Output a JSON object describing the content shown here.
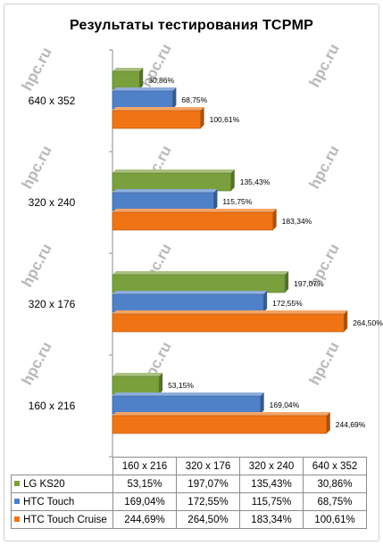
{
  "chart_data": {
    "type": "bar",
    "orientation": "horizontal",
    "title": "Результаты тестирования  TCPMP",
    "categories": [
      "160 x 216",
      "320 x 176",
      "320 x 240",
      "640 x 352"
    ],
    "series": [
      {
        "name": "LG KS20",
        "values": [
          53.15,
          197.07,
          135.43,
          30.86
        ],
        "labels": [
          "53,15%",
          "197,07%",
          "135,43%",
          "30,86%"
        ],
        "color": "#79a03c"
      },
      {
        "name": "HTC Touch",
        "values": [
          169.04,
          172.55,
          115.75,
          68.75
        ],
        "labels": [
          "169,04%",
          "172,55%",
          "115,75%",
          "68,75%"
        ],
        "color": "#4f81c9"
      },
      {
        "name": "HTC Touch Cruise",
        "values": [
          244.69,
          264.5,
          183.34,
          100.61
        ],
        "labels": [
          "244,69%",
          "264,50%",
          "183,34%",
          "100,61%"
        ],
        "color": "#f07414"
      }
    ],
    "xlim": [
      0,
      300
    ],
    "grid": false,
    "legend": "data-table"
  },
  "table": {
    "header": [
      "160 x 216",
      "320 x 176",
      "320 x 240",
      "640 x 352"
    ],
    "rows": [
      {
        "name": "LG KS20",
        "cells": [
          "53,15%",
          "197,07%",
          "135,43%",
          "30,86%"
        ]
      },
      {
        "name": "HTC Touch",
        "cells": [
          "169,04%",
          "172,55%",
          "115,75%",
          "68,75%"
        ]
      },
      {
        "name": "HTC Touch Cruise",
        "cells": [
          "244,69%",
          "264,50%",
          "183,34%",
          "100,61%"
        ]
      }
    ]
  },
  "watermark": "hpc.ru"
}
